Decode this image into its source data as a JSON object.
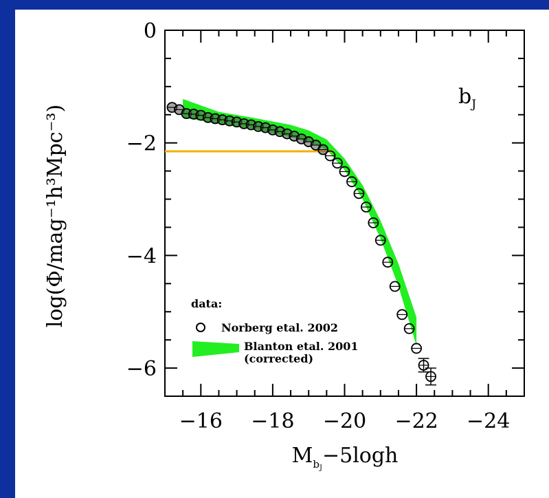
{
  "chart_data": {
    "type": "scatter",
    "title": "",
    "xlabel": "M_bJ−5logh",
    "xlabel_main": "M",
    "xlabel_sub": "b",
    "xlabel_subsub": "J",
    "xlabel_rest": "−5logh",
    "ylabel": "log(Φ/mag⁻¹h³Mpc⁻³)",
    "xlim": [
      -15,
      -25
    ],
    "ylim": [
      -6.5,
      0
    ],
    "xticks": [
      -16,
      -18,
      -20,
      -22,
      -24
    ],
    "xtick_labels": [
      "−16",
      "−18",
      "−20",
      "−22",
      "−24"
    ],
    "yticks": [
      0,
      -2,
      -4,
      -6
    ],
    "ytick_labels": [
      "0",
      "−2",
      "−4",
      "−6"
    ],
    "band_label": "b",
    "band_label_sub": "J",
    "legend": {
      "title": "data:",
      "entries": [
        "Norberg etal. 2002",
        "Blanton etal. 2001",
        "(corrected)"
      ]
    },
    "series": [
      {
        "name": "Norberg etal. 2002",
        "kind": "points",
        "x": [
          -15.2,
          -15.4,
          -15.6,
          -15.8,
          -16.0,
          -16.2,
          -16.4,
          -16.6,
          -16.8,
          -17.0,
          -17.2,
          -17.4,
          -17.6,
          -17.8,
          -18.0,
          -18.2,
          -18.4,
          -18.6,
          -18.8,
          -19.0,
          -19.2,
          -19.4,
          -19.6,
          -19.8,
          -20.0,
          -20.2,
          -20.4,
          -20.6,
          -20.8,
          -21.0,
          -21.2,
          -21.4,
          -21.6,
          -21.8,
          -22.0,
          -22.2,
          -22.4
        ],
        "y": [
          -1.37,
          -1.41,
          -1.48,
          -1.49,
          -1.51,
          -1.55,
          -1.57,
          -1.59,
          -1.61,
          -1.63,
          -1.66,
          -1.68,
          -1.71,
          -1.73,
          -1.77,
          -1.8,
          -1.84,
          -1.88,
          -1.93,
          -1.98,
          -2.04,
          -2.12,
          -2.23,
          -2.36,
          -2.51,
          -2.69,
          -2.9,
          -3.14,
          -3.42,
          -3.73,
          -4.12,
          -4.55,
          -5.05,
          -5.3,
          -5.65,
          -5.95,
          -6.15
        ],
        "yerr": [
          0,
          0,
          0,
          0,
          0,
          0,
          0,
          0,
          0,
          0,
          0,
          0,
          0,
          0,
          0,
          0,
          0,
          0,
          0,
          0,
          0,
          0,
          0,
          0,
          0,
          0,
          0,
          0,
          0,
          0,
          0,
          0,
          0,
          0,
          0,
          0.12,
          0.15
        ]
      },
      {
        "name": "Blanton etal. 2001",
        "kind": "band",
        "x": [
          -15.5,
          -16.5,
          -17.5,
          -18.5,
          -19.0,
          -19.5,
          -20.0,
          -20.5,
          -21.0,
          -21.5,
          -22.0
        ],
        "y_upper": [
          -1.22,
          -1.45,
          -1.56,
          -1.68,
          -1.78,
          -1.94,
          -2.28,
          -2.75,
          -3.38,
          -4.15,
          -5.1
        ],
        "y_lower": [
          -1.55,
          -1.66,
          -1.76,
          -1.9,
          -1.98,
          -2.12,
          -2.48,
          -3.0,
          -3.7,
          -4.55,
          -5.6
        ]
      },
      {
        "name": "",
        "kind": "line",
        "color": "#f0b000",
        "x": [
          -15.0,
          -19.7
        ],
        "y": [
          -2.15,
          -2.15
        ]
      }
    ],
    "colors": {
      "band": "#22ee22",
      "points": "#000000",
      "hline": "#f0b000",
      "background": "#0e2f9e"
    },
    "grid": false,
    "legend_position": "bottom-left"
  }
}
